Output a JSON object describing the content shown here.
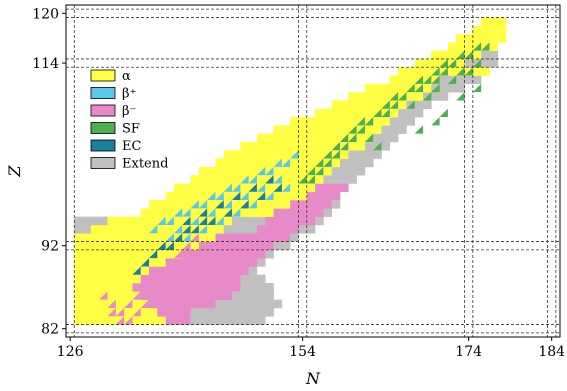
{
  "chart_data": {
    "type": "heatmap",
    "title": "",
    "xlabel": "N",
    "ylabel": "Z",
    "xlim": [
      125.5,
      185
    ],
    "ylim": [
      81,
      121
    ],
    "xticks": [
      126,
      154,
      174,
      184
    ],
    "yticks": [
      82,
      92,
      114,
      120
    ],
    "magic_lines_x": [
      126,
      154,
      174,
      184
    ],
    "magic_lines_y": [
      82,
      92,
      114,
      120
    ],
    "grid": false,
    "legend_position": "top-left",
    "legend": [
      {
        "key": "alpha",
        "label": "α",
        "color": "#ffff44"
      },
      {
        "key": "bplus",
        "label": "β⁺",
        "color": "#5bc8e8"
      },
      {
        "key": "bminus",
        "label": "β⁻",
        "color": "#e88ac8"
      },
      {
        "key": "sf",
        "label": "SF",
        "color": "#4caf50"
      },
      {
        "key": "ec",
        "label": "EC",
        "color": "#1a7f9c"
      },
      {
        "key": "extend",
        "label": "Extend",
        "color": "#c0c0c0"
      }
    ],
    "rows": [
      {
        "z": 83,
        "cells": [
          [
            127,
            137,
            "alpha"
          ],
          [
            138,
            140,
            "bminus"
          ],
          [
            141,
            149,
            "extend"
          ]
        ]
      },
      {
        "z": 84,
        "cells": [
          [
            127,
            136,
            "alpha"
          ],
          [
            137,
            140,
            "bminus"
          ],
          [
            141,
            150,
            "extend"
          ]
        ]
      },
      {
        "z": 85,
        "cells": [
          [
            127,
            135,
            "alpha"
          ],
          [
            136,
            143,
            "bminus"
          ],
          [
            144,
            151,
            "extend"
          ]
        ]
      },
      {
        "z": 86,
        "cells": [
          [
            127,
            134,
            "alpha"
          ],
          [
            135,
            145,
            "bminus"
          ],
          [
            146,
            150,
            "extend"
          ]
        ]
      },
      {
        "z": 87,
        "cells": [
          [
            127,
            133,
            "alpha"
          ],
          [
            134,
            146,
            "bminus"
          ],
          [
            147,
            150,
            "extend"
          ]
        ]
      },
      {
        "z": 88,
        "cells": [
          [
            127,
            134,
            "alpha"
          ],
          [
            135,
            146,
            "bminus"
          ],
          [
            147,
            149,
            "extend"
          ]
        ]
      },
      {
        "z": 89,
        "cells": [
          [
            127,
            135,
            "alpha"
          ],
          [
            136,
            147,
            "bminus"
          ],
          [
            148,
            148,
            "extend"
          ]
        ]
      },
      {
        "z": 90,
        "cells": [
          [
            127,
            137,
            "alpha"
          ],
          [
            138,
            148,
            "bminus"
          ],
          [
            149,
            149,
            "extend"
          ]
        ]
      },
      {
        "z": 91,
        "cells": [
          [
            127,
            139,
            "alpha"
          ],
          [
            140,
            149,
            "bminus"
          ],
          [
            150,
            150,
            "extend"
          ]
        ]
      },
      {
        "z": 92,
        "cells": [
          [
            127,
            141,
            "alpha"
          ],
          [
            142,
            150,
            "bminus"
          ],
          [
            151,
            152,
            "extend"
          ]
        ]
      },
      {
        "z": 93,
        "cells": [
          [
            127,
            143,
            "alpha"
          ],
          [
            144,
            152,
            "bminus"
          ],
          [
            153,
            153,
            "extend"
          ]
        ]
      },
      {
        "z": 94,
        "cells": [
          [
            127,
            128,
            "extend"
          ],
          [
            129,
            144,
            "alpha"
          ],
          [
            145,
            148,
            "extend"
          ],
          [
            149,
            153,
            "bminus"
          ],
          [
            154,
            155,
            "extend"
          ]
        ]
      },
      {
        "z": 95,
        "cells": [
          [
            127,
            130,
            "extend"
          ],
          [
            131,
            145,
            "alpha"
          ],
          [
            146,
            149,
            "extend"
          ],
          [
            150,
            155,
            "bminus"
          ],
          [
            156,
            156,
            "extend"
          ]
        ]
      },
      {
        "z": 96,
        "cells": [
          [
            135,
            150,
            "alpha"
          ],
          [
            151,
            156,
            "bminus"
          ],
          [
            157,
            157,
            "extend"
          ]
        ]
      },
      {
        "z": 97,
        "cells": [
          [
            136,
            152,
            "alpha"
          ],
          [
            153,
            157,
            "bminus"
          ],
          [
            158,
            158,
            "extend"
          ]
        ]
      },
      {
        "z": 98,
        "cells": [
          [
            138,
            154,
            "alpha"
          ],
          [
            155,
            158,
            "bminus"
          ]
        ]
      },
      {
        "z": 99,
        "cells": [
          [
            139,
            155,
            "alpha"
          ],
          [
            156,
            159,
            "bminus"
          ]
        ]
      },
      {
        "z": 100,
        "cells": [
          [
            141,
            156,
            "alpha"
          ],
          [
            157,
            160,
            "extend"
          ]
        ]
      },
      {
        "z": 101,
        "cells": [
          [
            142,
            157,
            "alpha"
          ],
          [
            158,
            161,
            "extend"
          ]
        ]
      },
      {
        "z": 102,
        "cells": [
          [
            144,
            158,
            "alpha"
          ],
          [
            159,
            162,
            "extend"
          ]
        ]
      },
      {
        "z": 103,
        "cells": [
          [
            145,
            159,
            "alpha"
          ],
          [
            160,
            163,
            "extend"
          ]
        ]
      },
      {
        "z": 104,
        "cells": [
          [
            147,
            161,
            "alpha"
          ],
          [
            162,
            164,
            "extend"
          ]
        ]
      },
      {
        "z": 105,
        "cells": [
          [
            149,
            162,
            "alpha"
          ],
          [
            163,
            165,
            "extend"
          ]
        ]
      },
      {
        "z": 106,
        "cells": [
          [
            151,
            163,
            "alpha"
          ],
          [
            164,
            166,
            "extend"
          ]
        ]
      },
      {
        "z": 107,
        "cells": [
          [
            153,
            164,
            "alpha"
          ],
          [
            165,
            167,
            "extend"
          ]
        ]
      },
      {
        "z": 108,
        "cells": [
          [
            156,
            165,
            "alpha"
          ],
          [
            166,
            168,
            "extend"
          ]
        ]
      },
      {
        "z": 109,
        "cells": [
          [
            158,
            166,
            "alpha"
          ],
          [
            167,
            169,
            "extend"
          ]
        ]
      },
      {
        "z": 110,
        "cells": [
          [
            160,
            168,
            "alpha"
          ],
          [
            169,
            171,
            "extend"
          ]
        ]
      },
      {
        "z": 111,
        "cells": [
          [
            162,
            169,
            "alpha"
          ],
          [
            170,
            173,
            "extend"
          ]
        ]
      },
      {
        "z": 112,
        "cells": [
          [
            165,
            170,
            "alpha"
          ],
          [
            171,
            175,
            "extend"
          ]
        ]
      },
      {
        "z": 113,
        "cells": [
          [
            166,
            171,
            "alpha"
          ],
          [
            172,
            176,
            "alpha"
          ]
        ]
      },
      {
        "z": 114,
        "cells": [
          [
            168,
            173,
            "alpha"
          ],
          [
            174,
            177,
            "extend"
          ]
        ]
      },
      {
        "z": 115,
        "cells": [
          [
            170,
            175,
            "alpha"
          ],
          [
            176,
            177,
            "extend"
          ]
        ]
      },
      {
        "z": 116,
        "cells": [
          [
            172,
            177,
            "alpha"
          ]
        ]
      },
      {
        "z": 117,
        "cells": [
          [
            173,
            178,
            "alpha"
          ]
        ]
      },
      {
        "z": 118,
        "cells": [
          [
            175,
            178,
            "alpha"
          ]
        ]
      },
      {
        "z": 119,
        "cells": [
          [
            176,
            178,
            "alpha"
          ]
        ]
      }
    ],
    "overlays": [
      {
        "type": "bplus",
        "cells": [
          [
            137,
            95
          ],
          [
            138,
            95
          ],
          [
            139,
            96
          ],
          [
            140,
            96
          ],
          [
            141,
            97
          ],
          [
            142,
            97
          ],
          [
            143,
            98
          ],
          [
            144,
            98
          ],
          [
            145,
            99
          ],
          [
            146,
            99
          ],
          [
            147,
            100
          ],
          [
            148,
            100
          ],
          [
            149,
            101
          ],
          [
            150,
            101
          ],
          [
            151,
            102
          ],
          [
            152,
            102
          ],
          [
            153,
            103
          ],
          [
            141,
            95
          ],
          [
            143,
            96
          ],
          [
            145,
            97
          ],
          [
            147,
            98
          ],
          [
            149,
            99
          ],
          [
            151,
            100
          ],
          [
            136,
            94
          ],
          [
            139,
            94
          ],
          [
            138,
            93
          ],
          [
            140,
            93
          ],
          [
            142,
            94
          ],
          [
            144,
            95
          ],
          [
            146,
            96
          ],
          [
            148,
            97
          ],
          [
            150,
            98
          ],
          [
            152,
            99
          ]
        ]
      },
      {
        "type": "ec",
        "cells": [
          [
            139,
            93
          ],
          [
            141,
            94
          ],
          [
            143,
            95
          ],
          [
            145,
            96
          ],
          [
            147,
            97
          ],
          [
            149,
            98
          ],
          [
            151,
            99
          ],
          [
            140,
            95
          ],
          [
            142,
            96
          ],
          [
            144,
            97
          ],
          [
            146,
            98
          ],
          [
            148,
            99
          ],
          [
            150,
            100
          ],
          [
            137,
            92
          ],
          [
            136,
            91
          ],
          [
            135,
            90
          ],
          [
            138,
            92
          ],
          [
            140,
            94
          ],
          [
            142,
            95
          ],
          [
            134,
            89
          ]
        ]
      },
      {
        "type": "sf",
        "cells": [
          [
            154,
            100
          ],
          [
            155,
            100
          ],
          [
            155,
            101
          ],
          [
            156,
            101
          ],
          [
            156,
            102
          ],
          [
            157,
            102
          ],
          [
            157,
            103
          ],
          [
            158,
            103
          ],
          [
            158,
            104
          ],
          [
            159,
            104
          ],
          [
            159,
            105
          ],
          [
            160,
            105
          ],
          [
            160,
            106
          ],
          [
            161,
            106
          ],
          [
            161,
            107
          ],
          [
            162,
            107
          ],
          [
            163,
            108
          ],
          [
            164,
            108
          ],
          [
            164,
            109
          ],
          [
            165,
            109
          ],
          [
            165,
            110
          ],
          [
            166,
            110
          ],
          [
            167,
            111
          ],
          [
            168,
            111
          ],
          [
            168,
            112
          ],
          [
            169,
            112
          ],
          [
            170,
            113
          ],
          [
            171,
            113
          ],
          [
            171,
            114
          ],
          [
            172,
            114
          ],
          [
            173,
            115
          ],
          [
            174,
            115
          ],
          [
            175,
            116
          ],
          [
            176,
            116
          ],
          [
            167,
            109
          ],
          [
            169,
            110
          ],
          [
            170,
            111
          ],
          [
            172,
            112
          ],
          [
            173,
            113
          ],
          [
            175,
            114
          ],
          [
            168,
            106
          ],
          [
            170,
            107
          ],
          [
            171,
            108
          ],
          [
            162,
            105
          ],
          [
            163,
            104
          ],
          [
            173,
            110
          ],
          [
            175,
            111
          ],
          [
            170,
            112
          ],
          [
            174,
            113
          ]
        ]
      },
      {
        "type": "bminus",
        "cells": [
          [
            130,
            86
          ],
          [
            131,
            85
          ],
          [
            132,
            84
          ],
          [
            133,
            85
          ],
          [
            134,
            86
          ],
          [
            135,
            87
          ],
          [
            136,
            88
          ],
          [
            137,
            89
          ],
          [
            138,
            90
          ],
          [
            139,
            91
          ],
          [
            140,
            92
          ],
          [
            141,
            93
          ],
          [
            133,
            83
          ],
          [
            134,
            84
          ],
          [
            135,
            85
          ],
          [
            136,
            86
          ],
          [
            137,
            87
          ],
          [
            138,
            88
          ],
          [
            139,
            89
          ],
          [
            140,
            90
          ],
          [
            141,
            91
          ],
          [
            142,
            92
          ],
          [
            131,
            84
          ],
          [
            132,
            83
          ]
        ]
      }
    ]
  }
}
